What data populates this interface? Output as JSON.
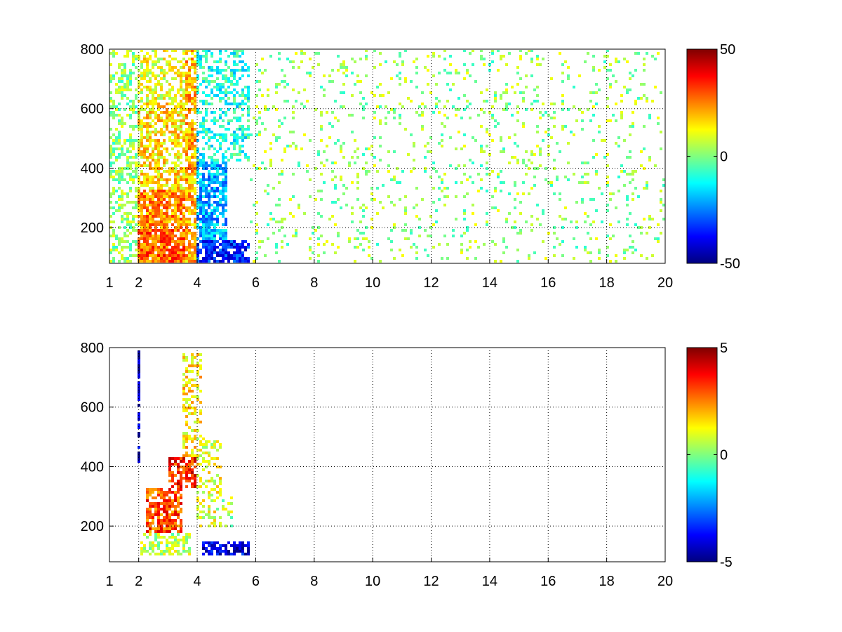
{
  "chart_data": [
    {
      "type": "heatmap",
      "title": "",
      "xlabel": "",
      "ylabel": "",
      "xlim": [
        1,
        20
      ],
      "ylim": [
        80,
        800
      ],
      "xticks": [
        1,
        2,
        4,
        6,
        8,
        10,
        12,
        14,
        16,
        18,
        20
      ],
      "yticks": [
        200,
        400,
        600,
        800
      ],
      "grid": true,
      "colormap": "jet",
      "clim": [
        -50,
        50
      ],
      "colorbar_ticks": [
        50,
        0,
        -50
      ],
      "regions": [
        {
          "x": [
            1.0,
            2.0
          ],
          "y": [
            80,
            800
          ],
          "value": 2,
          "density": 0.45
        },
        {
          "x": [
            2.0,
            3.6
          ],
          "y": [
            80,
            200
          ],
          "value": 28,
          "density": 0.9
        },
        {
          "x": [
            2.0,
            3.6
          ],
          "y": [
            200,
            330
          ],
          "value": 24,
          "density": 0.85
        },
        {
          "x": [
            2.0,
            3.8
          ],
          "y": [
            330,
            620
          ],
          "value": 15,
          "density": 0.65
        },
        {
          "x": [
            2.0,
            3.8
          ],
          "y": [
            620,
            800
          ],
          "value": 10,
          "density": 0.45
        },
        {
          "x": [
            3.6,
            4.2
          ],
          "y": [
            80,
            800
          ],
          "value": 20,
          "density": 0.8
        },
        {
          "x": [
            4.0,
            5.8
          ],
          "y": [
            80,
            160
          ],
          "value": -35,
          "density": 0.85
        },
        {
          "x": [
            4.0,
            5.0
          ],
          "y": [
            160,
            420
          ],
          "value": -20,
          "density": 0.75
        },
        {
          "x": [
            4.0,
            5.8
          ],
          "y": [
            420,
            800
          ],
          "value": -10,
          "density": 0.4
        },
        {
          "x": [
            5.8,
            20.0
          ],
          "y": [
            80,
            800
          ],
          "value": 2,
          "density": 0.1
        }
      ]
    },
    {
      "type": "heatmap",
      "title": "",
      "xlabel": "",
      "ylabel": "",
      "xlim": [
        1,
        20
      ],
      "ylim": [
        80,
        800
      ],
      "xticks": [
        1,
        2,
        4,
        6,
        8,
        10,
        12,
        14,
        16,
        18,
        20
      ],
      "yticks": [
        200,
        400,
        600,
        800
      ],
      "grid": true,
      "colormap": "jet",
      "clim": [
        -5,
        5
      ],
      "colorbar_ticks": [
        5,
        0,
        -5
      ],
      "regions": [
        {
          "x": [
            2.0,
            2.1
          ],
          "y": [
            400,
            800
          ],
          "value": -4.5,
          "density": 0.7
        },
        {
          "x": [
            2.2,
            3.5
          ],
          "y": [
            180,
            330
          ],
          "value": 3,
          "density": 0.75
        },
        {
          "x": [
            3.0,
            4.2
          ],
          "y": [
            330,
            430
          ],
          "value": 3.5,
          "density": 0.6
        },
        {
          "x": [
            2.1,
            3.8
          ],
          "y": [
            100,
            180
          ],
          "value": 0.5,
          "density": 0.55
        },
        {
          "x": [
            3.5,
            4.2
          ],
          "y": [
            430,
            780
          ],
          "value": 1.5,
          "density": 0.45
        },
        {
          "x": [
            4.0,
            4.8
          ],
          "y": [
            200,
            500
          ],
          "value": 1,
          "density": 0.4
        },
        {
          "x": [
            4.2,
            5.8
          ],
          "y": [
            100,
            150
          ],
          "value": -4,
          "density": 0.75
        },
        {
          "x": [
            4.6,
            5.2
          ],
          "y": [
            200,
            300
          ],
          "value": 0.5,
          "density": 0.3
        }
      ]
    }
  ]
}
